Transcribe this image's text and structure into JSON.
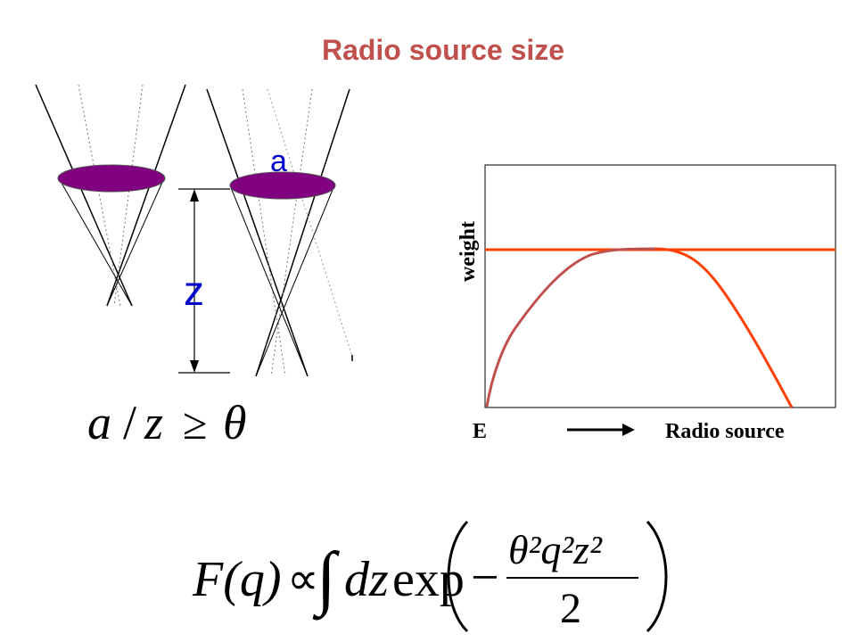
{
  "title": "Radio source size",
  "diagram": {
    "label_a": "a",
    "label_z": "z",
    "inequality": {
      "a": "a",
      "slash": "/",
      "z": "z",
      "geq": "≥",
      "theta": "θ"
    }
  },
  "graph": {
    "ylabel": "weight",
    "xlabel_left": "E",
    "xlabel_right": "Radio source"
  },
  "formula": {
    "lhs": "F(q)",
    "propto": "∝",
    "integral": "∫",
    "dz": "dz",
    "exp": "exp",
    "minus": "−",
    "numerator": "θ²q²z²",
    "denominator": "2"
  },
  "colors": {
    "title": "#c0504d",
    "ellipse_fill": "#800080",
    "label_blue": "#0000cc",
    "curve_red": "#ff4000",
    "curve_muted": "#c0504d"
  }
}
